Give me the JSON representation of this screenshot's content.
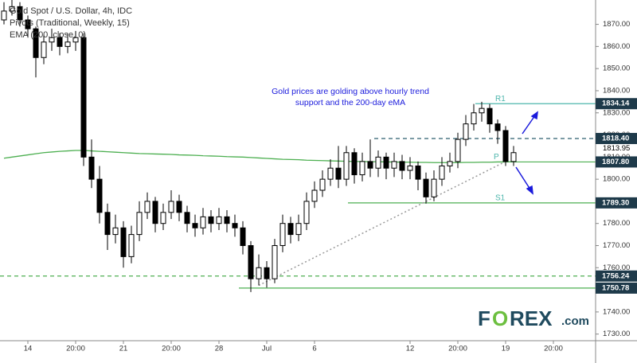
{
  "chart_data": {
    "type": "candlestick",
    "title": "Gold Spot / U.S. Dollar, 4h, IDC",
    "legend_lines": [
      "Pivots (Traditional, Weekly, 15)",
      "EMA (200, close, 0)"
    ],
    "annotations": [
      "Gold prices are golding above hourly trend",
      "support and the 200-day eMA"
    ],
    "logo": [
      "F",
      "O",
      "REX",
      ".com"
    ],
    "categories": [
      null,
      null,
      null,
      "14",
      null,
      null,
      null,
      null,
      null,
      "20:00",
      null,
      null,
      null,
      null,
      null,
      "21",
      null,
      null,
      null,
      null,
      null,
      "20:00",
      null,
      null,
      null,
      null,
      null,
      "28",
      null,
      null,
      null,
      null,
      null,
      "Jul",
      null,
      null,
      null,
      null,
      null,
      "6",
      null,
      null,
      null,
      null,
      null,
      null,
      null,
      null,
      null,
      null,
      null,
      "12",
      null,
      null,
      null,
      null,
      null,
      "20:00",
      null,
      null,
      null,
      null,
      null,
      "19",
      null,
      null,
      null,
      null,
      null,
      "20:00"
    ],
    "open": [
      1872,
      1876,
      1878,
      1872,
      1868,
      1855,
      1862,
      1864,
      1860,
      1862,
      1864,
      1810,
      1800,
      1785,
      1775,
      1778,
      1765,
      1775,
      1785,
      1790,
      1780,
      1785,
      1790,
      1785,
      1780,
      1778,
      1783,
      1780,
      1783,
      1780,
      1778,
      1770,
      1755,
      1760,
      1755,
      1770,
      1780,
      1775,
      1780,
      1790,
      1795,
      1800,
      1805,
      1800,
      1812,
      1802,
      1808,
      1805,
      1810,
      1805,
      1808,
      1804,
      1806,
      1800,
      1792,
      1800,
      1806,
      1808,
      1818,
      1825,
      1830,
      1832,
      1825,
      1822,
      1808,
      null,
      null,
      null,
      null,
      null
    ],
    "high": [
      1880,
      1881,
      1880,
      1874,
      1869,
      1865,
      1868,
      1866,
      1866,
      1867,
      1866,
      1818,
      1806,
      1789,
      1784,
      1781,
      1779,
      1790,
      1794,
      1792,
      1789,
      1795,
      1793,
      1788,
      1784,
      1787,
      1786,
      1787,
      1786,
      1784,
      1781,
      1772,
      1766,
      1763,
      1773,
      1784,
      1783,
      1784,
      1794,
      1799,
      1804,
      1809,
      1815,
      1815,
      1814,
      1812,
      1818,
      1813,
      1812,
      1812,
      1811,
      1810,
      1808,
      1803,
      1804,
      1810,
      1812,
      1821,
      1829,
      1834,
      1835,
      1834,
      1827,
      1824,
      1815,
      null,
      null,
      null,
      null,
      null
    ],
    "low": [
      1870,
      1874,
      1869,
      1864,
      1846,
      1852,
      1858,
      1856,
      1857,
      1858,
      1806,
      1796,
      1780,
      1768,
      1771,
      1760,
      1762,
      1772,
      1782,
      1776,
      1777,
      1782,
      1781,
      1776,
      1774,
      1775,
      1776,
      1777,
      1776,
      1774,
      1766,
      1749,
      1752,
      1751,
      1753,
      1767,
      1771,
      1772,
      1777,
      1787,
      1792,
      1797,
      1796,
      1797,
      1798,
      1799,
      1801,
      1801,
      1800,
      1801,
      1800,
      1800,
      1795,
      1789,
      1790,
      1797,
      1803,
      1805,
      1815,
      1822,
      1826,
      1821,
      1816,
      1806,
      1806,
      null,
      null,
      null,
      null,
      null
    ],
    "close": [
      1876,
      1878,
      1872,
      1868,
      1855,
      1862,
      1864,
      1860,
      1862,
      1864,
      1810,
      1800,
      1785,
      1775,
      1778,
      1765,
      1775,
      1785,
      1790,
      1780,
      1785,
      1790,
      1785,
      1780,
      1778,
      1783,
      1780,
      1783,
      1780,
      1778,
      1770,
      1755,
      1760,
      1755,
      1770,
      1780,
      1775,
      1780,
      1790,
      1795,
      1800,
      1805,
      1800,
      1812,
      1802,
      1808,
      1805,
      1810,
      1805,
      1808,
      1804,
      1806,
      1800,
      1792,
      1800,
      1806,
      1808,
      1818,
      1825,
      1830,
      1832,
      1825,
      1822,
      1808,
      1812,
      null,
      null,
      null,
      null,
      null
    ],
    "up_color": "#ffffff",
    "down_color": "#000000",
    "ema": {
      "color": "#4caf50",
      "values": [
        1809.5,
        1810,
        1810.5,
        1811,
        1811.5,
        1812,
        1812.3,
        1812.6,
        1812.8,
        1813,
        1813,
        1812.8,
        1812.6,
        1812.4,
        1812.2,
        1812,
        1811.8,
        1811.6,
        1811.5,
        1811.4,
        1811.3,
        1811.2,
        1811,
        1810.9,
        1810.8,
        1810.6,
        1810.5,
        1810.4,
        1810.2,
        1810.1,
        1810,
        1809.8,
        1809.6,
        1809.4,
        1809.2,
        1809,
        1808.9,
        1808.8,
        1808.6,
        1808.5,
        1808.4,
        1808.3,
        1808.2,
        1808.1,
        1808,
        1808,
        1807.9,
        1807.9,
        1807.8,
        1807.8,
        1807.7,
        1807.7,
        1807.6,
        1807.6,
        1807.5,
        1807.5,
        1807.5,
        1807.5,
        1807.6,
        1807.6,
        1807.7,
        1807.7,
        1807.8,
        1807.8,
        1807.9,
        null,
        null,
        null,
        null,
        null
      ]
    },
    "trendline": {
      "x": [
        32,
        63
      ],
      "values": [
        1752,
        1808
      ],
      "color": "#999999"
    },
    "levels": {
      "values": [
        1834.14,
        1818.4,
        1807.8,
        1789.3,
        1756.24,
        1750.78
      ],
      "value_labels": [
        "1834.14",
        "1818.40",
        "1807.80",
        "1789.30",
        "1756.24",
        "1750.78"
      ],
      "colors": [
        "#4db6ac",
        "#2f5f6f",
        "#4caf50",
        "#4caf50",
        "#4caf50",
        "#4caf50"
      ],
      "dashed": [
        false,
        true,
        false,
        false,
        true,
        false
      ]
    },
    "pivot_labels": [
      "R1",
      "P",
      "S1"
    ],
    "last_price": 1813.95,
    "ylim": [
      1727,
      1881
    ],
    "yticks": [
      {
        "value": 1730,
        "label": "1730.00"
      },
      {
        "value": 1740,
        "label": "1740.00"
      },
      {
        "value": 1750,
        "label": "1750.00"
      },
      {
        "value": 1760,
        "label": "1760.00"
      },
      {
        "value": 1770,
        "label": "1770.00"
      },
      {
        "value": 1780,
        "label": "1780.00"
      },
      {
        "value": 1790,
        "label": "1790.00"
      },
      {
        "value": 1800,
        "label": "1800.00"
      },
      {
        "value": 1810,
        "label": "1810.00"
      },
      {
        "value": 1820,
        "label": "1820.00"
      },
      {
        "value": 1830,
        "label": "1830.00"
      },
      {
        "value": 1840,
        "label": "1840.00"
      },
      {
        "value": 1850,
        "label": "1850.00"
      },
      {
        "value": 1860,
        "label": "1860.00"
      },
      {
        "value": 1870,
        "label": "1870.00"
      }
    ]
  }
}
